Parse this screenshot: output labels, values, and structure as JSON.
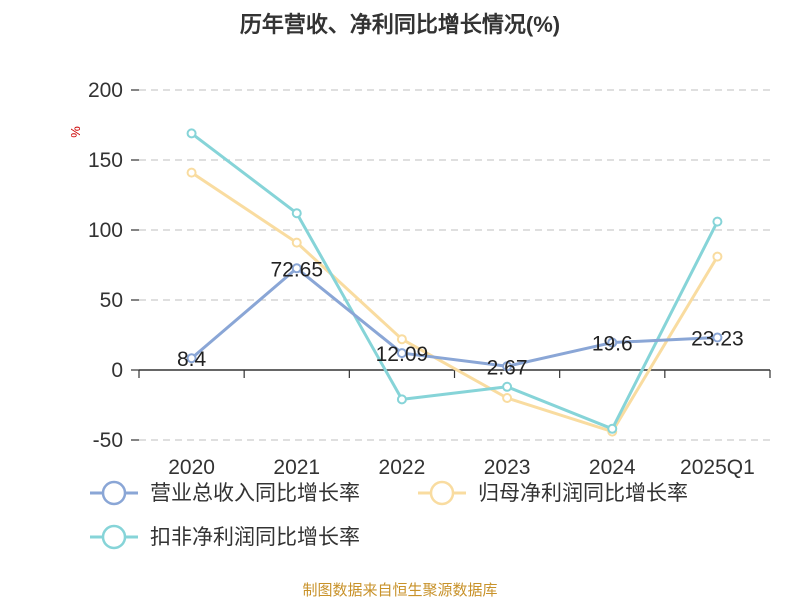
{
  "title": "历年营收、净利同比增长情况(%)",
  "source": "制图数据来自恒生聚源数据库",
  "chart_data": {
    "type": "line",
    "title": "历年营收、净利同比增长情况(%)",
    "ylabel": "%",
    "ylim": [
      -50,
      200
    ],
    "yticks": [
      -50,
      0,
      50,
      100,
      150,
      200
    ],
    "grid": true,
    "legend_position": "bottom",
    "categories": [
      "2020",
      "2021",
      "2022",
      "2023",
      "2024",
      "2025Q1"
    ],
    "series": [
      {
        "name": "营业总收入同比增长率",
        "color": "#8aa6d6",
        "values": [
          8.4,
          72.65,
          12.09,
          2.67,
          19.6,
          23.23
        ],
        "labels": [
          "8.4",
          "72.65",
          "12.09",
          "2.67",
          "19.6",
          "23.23"
        ]
      },
      {
        "name": "归母净利润同比增长率",
        "color": "#f9dca0",
        "values": [
          141,
          91,
          22,
          -20,
          -44,
          81
        ]
      },
      {
        "name": "扣非净利润同比增长率",
        "color": "#86d4d8",
        "values": [
          169,
          112,
          -21,
          -12,
          -42,
          106
        ]
      }
    ]
  }
}
